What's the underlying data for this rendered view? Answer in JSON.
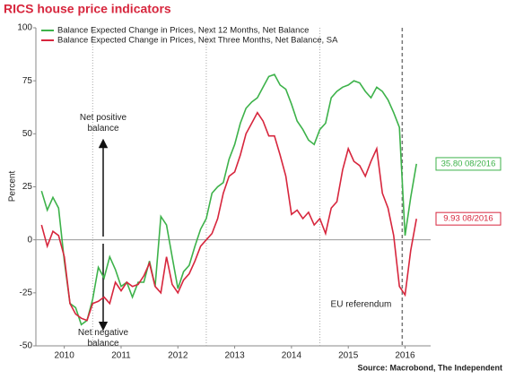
{
  "chart_data": {
    "type": "line",
    "title": "RICS house price indicators",
    "ylabel": "Percent",
    "source": "Source: Macrobond, The Independent",
    "x": [
      2010.1,
      2010.2,
      2010.3,
      2010.4,
      2010.5,
      2010.6,
      2010.7,
      2010.8,
      2010.9,
      2011.0,
      2011.1,
      2011.2,
      2011.3,
      2011.4,
      2011.5,
      2011.6,
      2011.7,
      2011.8,
      2011.9,
      2012.0,
      2012.1,
      2012.2,
      2012.3,
      2012.4,
      2012.5,
      2012.6,
      2012.7,
      2012.8,
      2012.9,
      2013.0,
      2013.1,
      2013.2,
      2013.3,
      2013.4,
      2013.5,
      2013.6,
      2013.7,
      2013.8,
      2013.9,
      2014.0,
      2014.1,
      2014.2,
      2014.3,
      2014.4,
      2014.5,
      2014.6,
      2014.7,
      2014.8,
      2014.9,
      2015.0,
      2015.1,
      2015.2,
      2015.3,
      2015.4,
      2015.5,
      2015.6,
      2015.7,
      2015.8,
      2015.9,
      2016.0,
      2016.1,
      2016.2,
      2016.3,
      2016.4,
      2016.5,
      2016.6,
      2016.7
    ],
    "series": [
      {
        "name": "Balance Expected Change in Prices, Next 12 Months, Net Balance",
        "color": "#3db24a",
        "values": [
          23,
          14,
          20,
          15,
          -10,
          -30,
          -32,
          -40,
          -38,
          -28,
          -13,
          -18,
          -8,
          -14,
          -22,
          -20,
          -27,
          -20,
          -20,
          -10,
          -22,
          11,
          7,
          -8,
          -23,
          -15,
          -12,
          -3,
          5,
          10,
          22,
          25,
          27,
          38,
          45,
          55,
          62,
          65,
          67,
          72,
          77,
          78,
          73,
          71,
          64,
          56,
          52,
          47,
          45,
          52,
          55,
          67,
          70,
          72,
          73,
          75,
          74,
          70,
          67,
          72,
          70,
          66,
          60,
          53,
          2,
          20,
          35.8
        ],
        "end_label": "35.80 08/2016"
      },
      {
        "name": "Balance Expected Change in Prices, Next Three Months, Net Balance, SA",
        "color": "#d7263d",
        "values": [
          7,
          -3,
          4,
          2,
          -8,
          -30,
          -35,
          -37,
          -38,
          -30,
          -29,
          -27,
          -30,
          -20,
          -24,
          -20,
          -22,
          -21,
          -17,
          -11,
          -22,
          -25,
          -8,
          -21,
          -25,
          -19,
          -16,
          -10,
          -3,
          0,
          3,
          10,
          22,
          30,
          32,
          40,
          50,
          55,
          60,
          56,
          49,
          49,
          40,
          30,
          12,
          14,
          10,
          13,
          7,
          10,
          3,
          15,
          18,
          33,
          43,
          37,
          35,
          30,
          37,
          43,
          22,
          15,
          2,
          -22,
          -26,
          -5,
          9.93
        ],
        "end_label": "9.93 08/2016"
      }
    ],
    "xlim": [
      2010,
      2016.95
    ],
    "xticks": [
      {
        "value": 2010.5,
        "label": "2010"
      },
      {
        "value": 2011.5,
        "label": "2011"
      },
      {
        "value": 2012.5,
        "label": "2012"
      },
      {
        "value": 2013.5,
        "label": "2013"
      },
      {
        "value": 2014.5,
        "label": "2014"
      },
      {
        "value": 2015.5,
        "label": "2015"
      },
      {
        "value": 2016.5,
        "label": "2016"
      }
    ],
    "xgrid": [
      2011,
      2013,
      2015
    ],
    "ylim": [
      -50,
      100
    ],
    "yticks": [
      -50,
      -25,
      0,
      25,
      50,
      75,
      100
    ],
    "annotations": [
      {
        "text": "Net positive balance"
      },
      {
        "text": "Net negative balance"
      },
      {
        "text": "EU referendum",
        "x": 2016.45
      }
    ],
    "legend": "upper left"
  }
}
